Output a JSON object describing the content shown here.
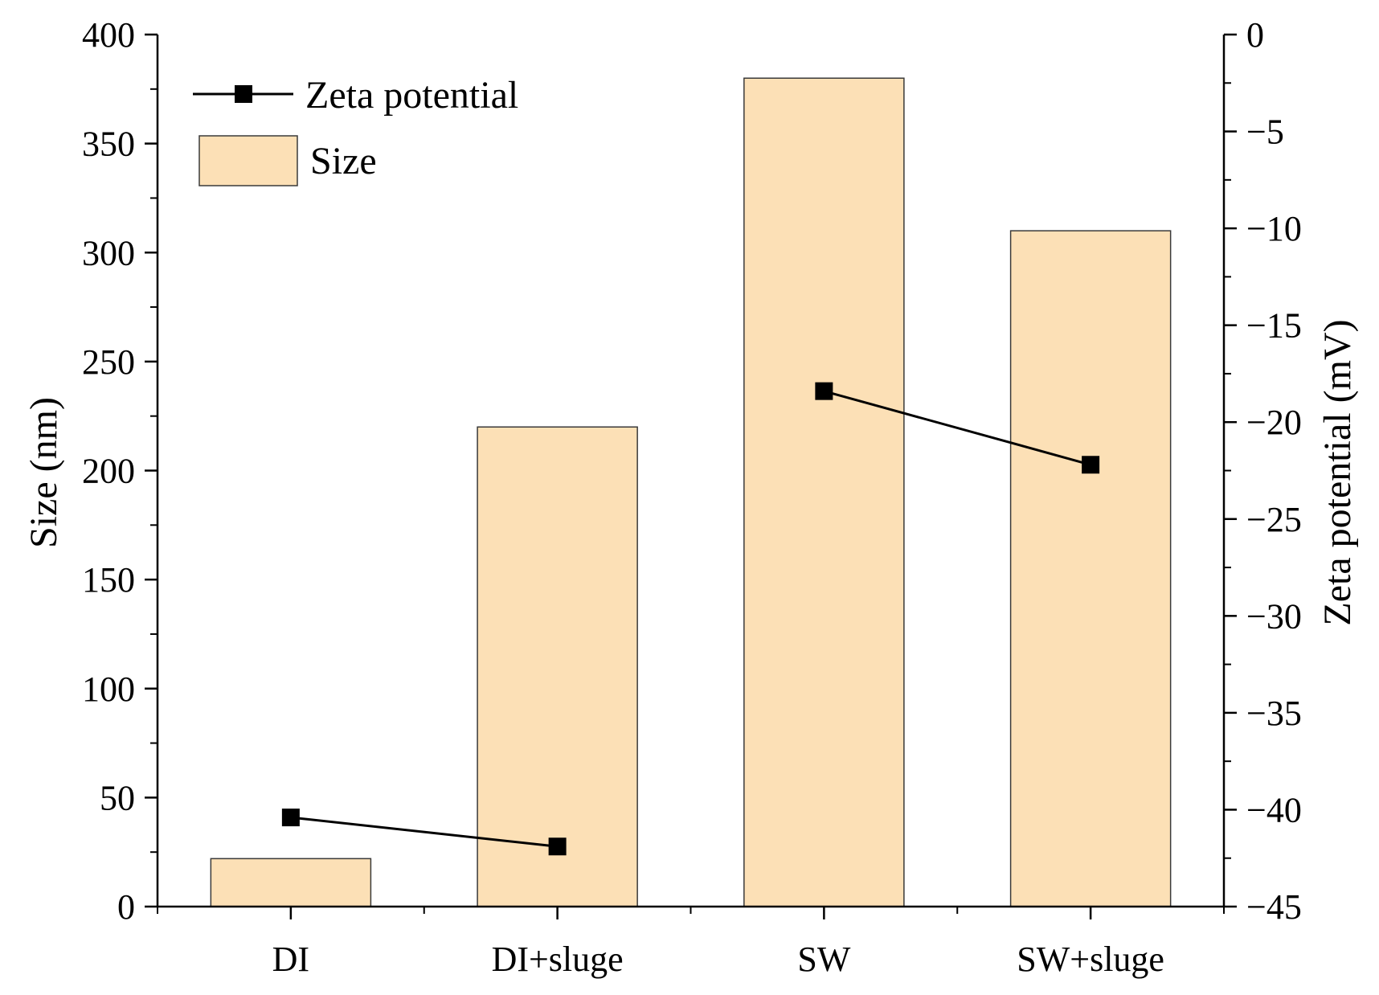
{
  "chart_data": {
    "type": "bar",
    "title": "",
    "categories": [
      "DI",
      "DI+sluge",
      "SW",
      "SW+sluge"
    ],
    "series": [
      {
        "name": "Size",
        "kind": "bar",
        "axis": "left",
        "values": [
          22,
          220,
          380,
          310
        ],
        "color": "#FCE0B6",
        "edge_color": "#3A3A3A"
      },
      {
        "name": "Zeta potential",
        "kind": "line",
        "axis": "right",
        "values": [
          -40.4,
          -41.9,
          -18.4,
          -22.2
        ],
        "color": "#000000",
        "marker": "square"
      }
    ],
    "xlabel": "",
    "ylabel": "Size (nm)",
    "y2label": "Zeta potential (mV)",
    "ylim": [
      0,
      400
    ],
    "y2lim": [
      -45,
      0
    ],
    "yticks": [
      "0",
      "50",
      "100",
      "150",
      "200",
      "250",
      "300",
      "350",
      "400"
    ],
    "y2ticks": [
      "0",
      "−5",
      "−10",
      "−15",
      "−20",
      "−25",
      "−30",
      "−35",
      "−40",
      "−45"
    ],
    "legend": {
      "position": "top-left",
      "entries": [
        "Zeta potential",
        "Size"
      ]
    },
    "grid": false
  }
}
